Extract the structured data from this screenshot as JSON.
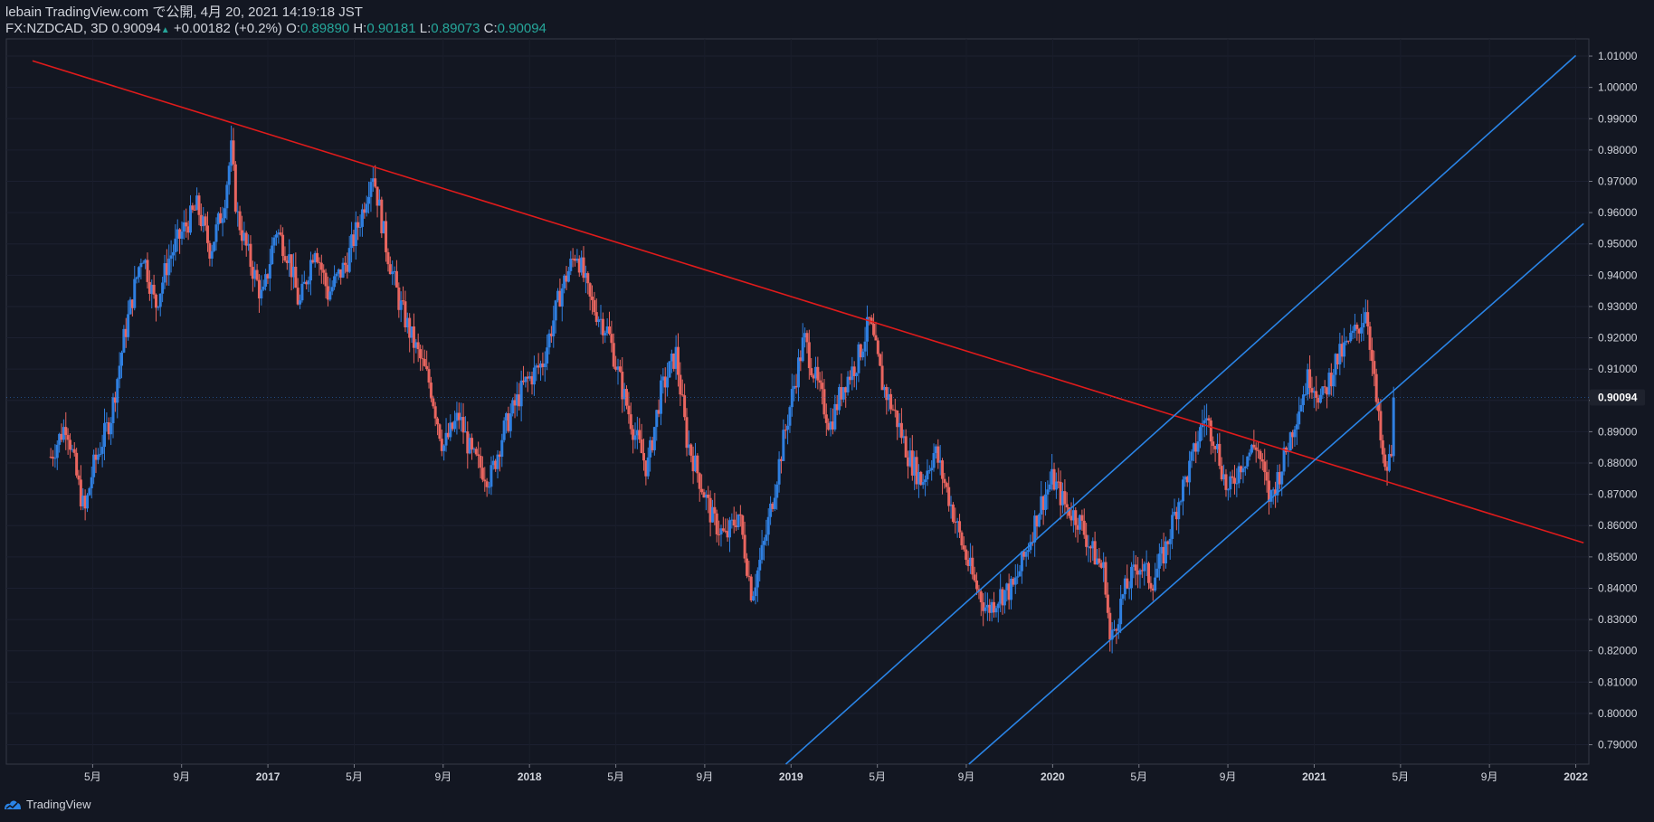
{
  "header": {
    "publish_line": "lebain TradingView.com で公開, 4月 20, 2021 14:19:18 JST",
    "symbol": "FX:NZDCAD, 3D",
    "last": "0.90094",
    "change_arrow": "▲",
    "change": "+0.00182 (+0.2%)",
    "o_label": "O:",
    "o_value": "0.89890",
    "h_label": "H:",
    "h_value": "0.90181",
    "l_label": "L:",
    "l_value": "0.89073",
    "c_label": "C:",
    "c_value": "0.90094"
  },
  "footer": {
    "brand": "TradingView"
  },
  "colors": {
    "background": "#131722",
    "up": "#2f7fe0",
    "down": "#e8655f",
    "trendline": "#e01b1b",
    "channel": "#2a84e6",
    "axis_text": "#d1d4dc",
    "last_price_bg": "#1e222d"
  },
  "chart_data": {
    "type": "candlestick",
    "symbol": "FX:NZDCAD",
    "timeframe": "3D",
    "date_range": [
      "2016-03",
      "2022-01"
    ],
    "xlabel": "",
    "ylabel": "",
    "ylim": [
      0.7838,
      1.0155
    ],
    "y_ticks": [
      "0.79000",
      "0.80000",
      "0.81000",
      "0.82000",
      "0.83000",
      "0.84000",
      "0.85000",
      "0.86000",
      "0.87000",
      "0.88000",
      "0.89000",
      "0.90000",
      "0.91000",
      "0.92000",
      "0.93000",
      "0.94000",
      "0.95000",
      "0.96000",
      "0.97000",
      "0.98000",
      "0.99000",
      "1.00000",
      "1.01000"
    ],
    "y_tick_values": [
      0.79,
      0.8,
      0.81,
      0.82,
      0.83,
      0.84,
      0.85,
      0.86,
      0.87,
      0.88,
      0.89,
      0.9,
      0.91,
      0.92,
      0.93,
      0.94,
      0.95,
      0.96,
      0.97,
      0.98,
      0.99,
      1.0,
      1.01
    ],
    "x_ticks": [
      {
        "label": "5月",
        "t": 2016.33
      },
      {
        "label": "9月",
        "t": 2016.67
      },
      {
        "label": "2017",
        "t": 2017.0
      },
      {
        "label": "5月",
        "t": 2017.33
      },
      {
        "label": "9月",
        "t": 2017.67
      },
      {
        "label": "2018",
        "t": 2018.0
      },
      {
        "label": "5月",
        "t": 2018.33
      },
      {
        "label": "9月",
        "t": 2018.67
      },
      {
        "label": "2019",
        "t": 2019.0
      },
      {
        "label": "5月",
        "t": 2019.33
      },
      {
        "label": "9月",
        "t": 2019.67
      },
      {
        "label": "2020",
        "t": 2020.0
      },
      {
        "label": "5月",
        "t": 2020.33
      },
      {
        "label": "9月",
        "t": 2020.67
      },
      {
        "label": "2021",
        "t": 2021.0
      },
      {
        "label": "5月",
        "t": 2021.33
      },
      {
        "label": "9月",
        "t": 2021.67
      },
      {
        "label": "2022",
        "t": 2022.0
      }
    ],
    "last_price": {
      "value": 0.90094,
      "label": "0.90094"
    },
    "price_path": [
      [
        2016.17,
        0.882
      ],
      [
        2016.23,
        0.893
      ],
      [
        2016.27,
        0.875
      ],
      [
        2016.3,
        0.864
      ],
      [
        2016.33,
        0.878
      ],
      [
        2016.4,
        0.895
      ],
      [
        2016.45,
        0.92
      ],
      [
        2016.52,
        0.948
      ],
      [
        2016.57,
        0.93
      ],
      [
        2016.62,
        0.945
      ],
      [
        2016.68,
        0.955
      ],
      [
        2016.73,
        0.962
      ],
      [
        2016.78,
        0.948
      ],
      [
        2016.83,
        0.962
      ],
      [
        2016.86,
        0.98
      ],
      [
        2016.88,
        0.96
      ],
      [
        2016.93,
        0.945
      ],
      [
        2016.98,
        0.932
      ],
      [
        2017.03,
        0.955
      ],
      [
        2017.08,
        0.946
      ],
      [
        2017.12,
        0.93
      ],
      [
        2017.18,
        0.95
      ],
      [
        2017.23,
        0.934
      ],
      [
        2017.3,
        0.944
      ],
      [
        2017.36,
        0.96
      ],
      [
        2017.4,
        0.974
      ],
      [
        2017.45,
        0.95
      ],
      [
        2017.5,
        0.932
      ],
      [
        2017.55,
        0.92
      ],
      [
        2017.62,
        0.905
      ],
      [
        2017.67,
        0.885
      ],
      [
        2017.73,
        0.895
      ],
      [
        2017.78,
        0.882
      ],
      [
        2017.85,
        0.875
      ],
      [
        2017.9,
        0.89
      ],
      [
        2017.98,
        0.905
      ],
      [
        2018.05,
        0.912
      ],
      [
        2018.12,
        0.935
      ],
      [
        2018.18,
        0.948
      ],
      [
        2018.23,
        0.932
      ],
      [
        2018.3,
        0.922
      ],
      [
        2018.35,
        0.905
      ],
      [
        2018.4,
        0.89
      ],
      [
        2018.45,
        0.878
      ],
      [
        2018.5,
        0.902
      ],
      [
        2018.56,
        0.915
      ],
      [
        2018.6,
        0.888
      ],
      [
        2018.65,
        0.875
      ],
      [
        2018.7,
        0.862
      ],
      [
        2018.75,
        0.856
      ],
      [
        2018.8,
        0.864
      ],
      [
        2018.85,
        0.838
      ],
      [
        2018.9,
        0.855
      ],
      [
        2018.95,
        0.878
      ],
      [
        2019.0,
        0.9
      ],
      [
        2019.05,
        0.92
      ],
      [
        2019.1,
        0.905
      ],
      [
        2019.15,
        0.892
      ],
      [
        2019.2,
        0.905
      ],
      [
        2019.25,
        0.912
      ],
      [
        2019.3,
        0.925
      ],
      [
        2019.35,
        0.905
      ],
      [
        2019.4,
        0.895
      ],
      [
        2019.45,
        0.882
      ],
      [
        2019.5,
        0.874
      ],
      [
        2019.55,
        0.884
      ],
      [
        2019.6,
        0.87
      ],
      [
        2019.65,
        0.855
      ],
      [
        2019.7,
        0.842
      ],
      [
        2019.75,
        0.833
      ],
      [
        2019.8,
        0.838
      ],
      [
        2019.85,
        0.84
      ],
      [
        2019.9,
        0.852
      ],
      [
        2019.95,
        0.866
      ],
      [
        2020.0,
        0.875
      ],
      [
        2020.05,
        0.866
      ],
      [
        2020.1,
        0.862
      ],
      [
        2020.15,
        0.852
      ],
      [
        2020.2,
        0.845
      ],
      [
        2020.22,
        0.822
      ],
      [
        2020.27,
        0.838
      ],
      [
        2020.33,
        0.848
      ],
      [
        2020.38,
        0.842
      ],
      [
        2020.43,
        0.852
      ],
      [
        2020.48,
        0.868
      ],
      [
        2020.53,
        0.88
      ],
      [
        2020.58,
        0.895
      ],
      [
        2020.62,
        0.888
      ],
      [
        2020.67,
        0.87
      ],
      [
        2020.72,
        0.88
      ],
      [
        2020.78,
        0.886
      ],
      [
        2020.83,
        0.868
      ],
      [
        2020.88,
        0.88
      ],
      [
        2020.93,
        0.895
      ],
      [
        2020.98,
        0.908
      ],
      [
        2021.03,
        0.9
      ],
      [
        2021.08,
        0.912
      ],
      [
        2021.13,
        0.918
      ],
      [
        2021.18,
        0.925
      ],
      [
        2021.2,
        0.93
      ],
      [
        2021.23,
        0.905
      ],
      [
        2021.25,
        0.89
      ],
      [
        2021.27,
        0.876
      ],
      [
        2021.3,
        0.884
      ],
      [
        2021.31,
        0.901
      ]
    ],
    "drawings": [
      {
        "name": "descending-trendline",
        "color": "#e01b1b",
        "p1": [
          2016.1,
          1.0085
        ],
        "p2": [
          2022.03,
          0.8545
        ]
      },
      {
        "name": "channel-upper-line",
        "color": "#2a84e6",
        "p1": [
          2018.98,
          0.7838
        ],
        "p2": [
          2022.0,
          1.0102
        ]
      },
      {
        "name": "channel-lower-line",
        "color": "#2a84e6",
        "p1": [
          2019.68,
          0.7838
        ],
        "p2": [
          2022.03,
          0.9565
        ]
      }
    ]
  }
}
